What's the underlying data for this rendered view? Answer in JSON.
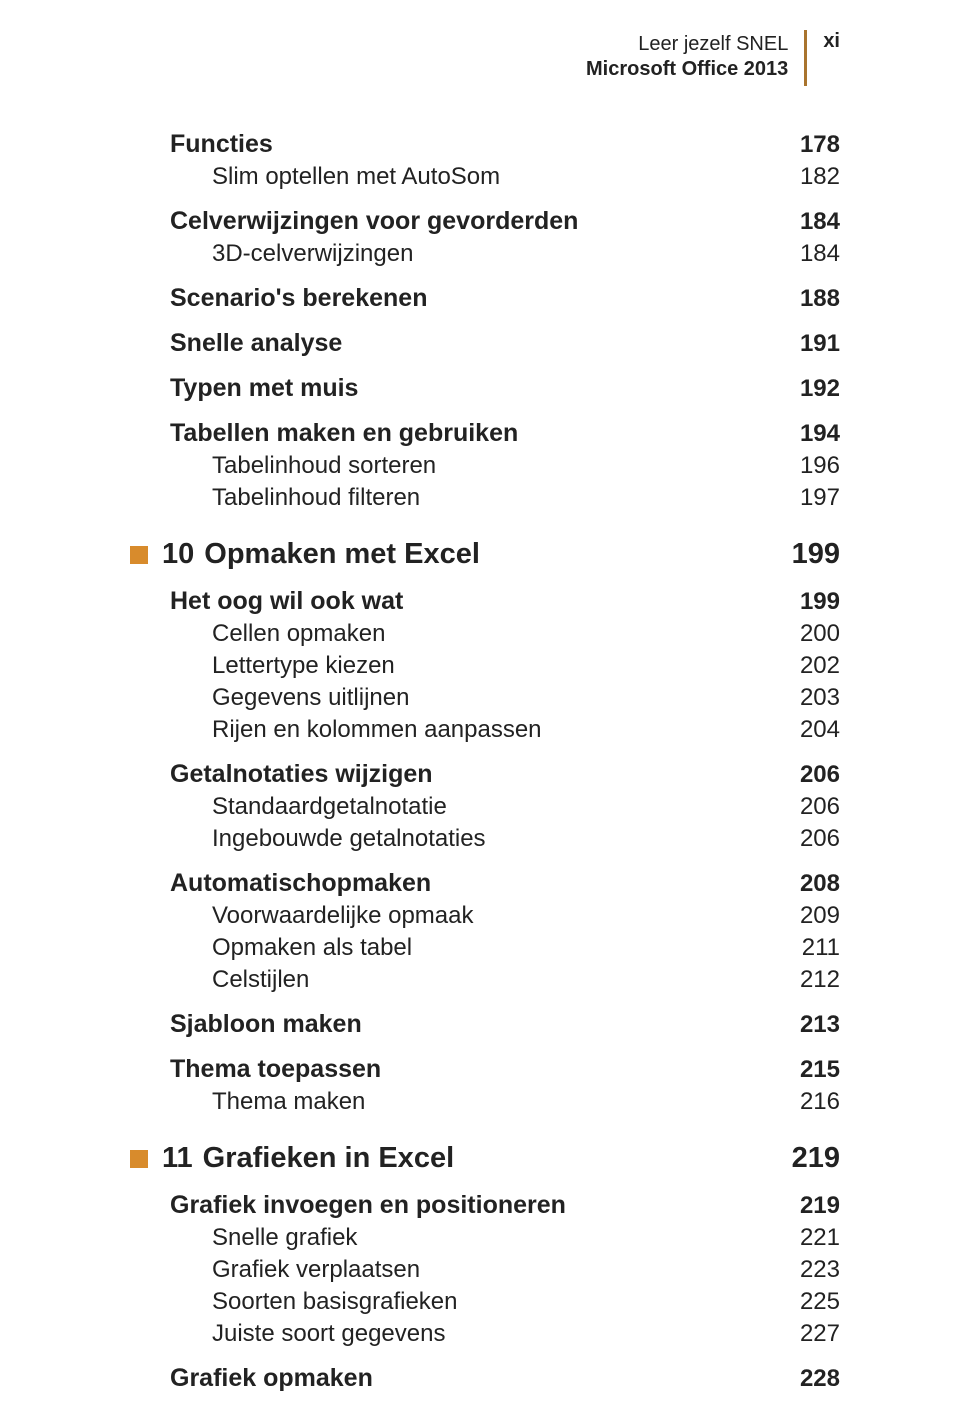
{
  "colors": {
    "accent": "#d88b2c",
    "rule": "#a9742e",
    "text": "#222222",
    "background": "#ffffff"
  },
  "typography": {
    "body_family": "Optima / Candara / sans-serif",
    "sub_fontsize_pt": 18,
    "sec_fontsize_pt": 19,
    "chap_fontsize_pt": 22,
    "header_fontsize_pt": 15
  },
  "running_head": {
    "line1": "Leer jezelf SNEL",
    "line2": "Microsoft Office 2013",
    "folio": "xi"
  },
  "toc": [
    {
      "level": "sec",
      "title": "Functies",
      "page": "178"
    },
    {
      "level": "sub",
      "title": "Slim optellen met AutoSom",
      "page": "182"
    },
    {
      "level": "sec",
      "title": "Celverwijzingen voor gevorderden",
      "page": "184"
    },
    {
      "level": "sub",
      "title": "3D-celverwijzingen",
      "page": "184"
    },
    {
      "level": "sec",
      "title": "Scenario's berekenen",
      "page": "188"
    },
    {
      "level": "sec",
      "title": "Snelle analyse",
      "page": "191"
    },
    {
      "level": "sec",
      "title": "Typen met muis",
      "page": "192"
    },
    {
      "level": "sec",
      "title": "Tabellen maken en gebruiken",
      "page": "194"
    },
    {
      "level": "sub",
      "title": "Tabelinhoud sorteren",
      "page": "196"
    },
    {
      "level": "sub",
      "title": "Tabelinhoud filteren",
      "page": "197"
    },
    {
      "level": "chap",
      "number": "10",
      "title": "Opmaken met Excel",
      "page": "199"
    },
    {
      "level": "sec",
      "title": "Het oog wil ook wat",
      "page": "199"
    },
    {
      "level": "sub",
      "title": "Cellen opmaken",
      "page": "200"
    },
    {
      "level": "sub",
      "title": "Lettertype kiezen",
      "page": "202"
    },
    {
      "level": "sub",
      "title": "Gegevens uitlijnen",
      "page": "203"
    },
    {
      "level": "sub",
      "title": "Rijen en kolommen aanpassen",
      "page": "204"
    },
    {
      "level": "sec",
      "title": "Getalnotaties wijzigen",
      "page": "206"
    },
    {
      "level": "sub",
      "title": "Standaardgetalnotatie",
      "page": "206"
    },
    {
      "level": "sub",
      "title": "Ingebouwde getalnotaties",
      "page": "206"
    },
    {
      "level": "sec",
      "title": "Automatischopmaken",
      "page": "208"
    },
    {
      "level": "sub",
      "title": "Voorwaardelijke opmaak",
      "page": "209"
    },
    {
      "level": "sub",
      "title": "Opmaken als tabel",
      "page": "211"
    },
    {
      "level": "sub",
      "title": "Celstijlen",
      "page": "212"
    },
    {
      "level": "sec",
      "title": "Sjabloon maken",
      "page": "213"
    },
    {
      "level": "sec",
      "title": "Thema toepassen",
      "page": "215"
    },
    {
      "level": "sub",
      "title": "Thema maken",
      "page": "216"
    },
    {
      "level": "chap",
      "number": "11",
      "title": "Grafieken in Excel",
      "page": "219"
    },
    {
      "level": "sec",
      "title": "Grafiek invoegen en positioneren",
      "page": "219"
    },
    {
      "level": "sub",
      "title": "Snelle grafiek",
      "page": "221"
    },
    {
      "level": "sub",
      "title": "Grafiek verplaatsen",
      "page": "223"
    },
    {
      "level": "sub",
      "title": "Soorten basisgrafieken",
      "page": "225"
    },
    {
      "level": "sub",
      "title": "Juiste soort gegevens",
      "page": "227"
    },
    {
      "level": "sec",
      "title": "Grafiek opmaken",
      "page": "228"
    }
  ]
}
